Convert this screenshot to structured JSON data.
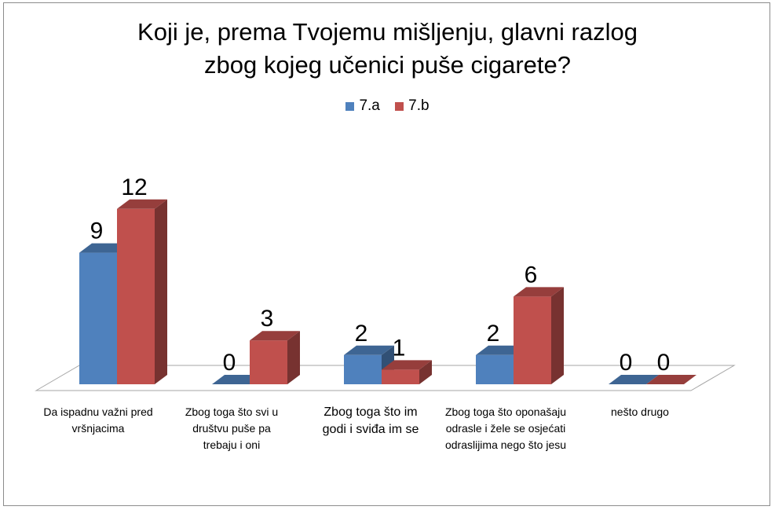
{
  "chart_data": {
    "type": "bar",
    "title_lines": [
      "Koji je, prema Tvojemu mišljenju, glavni razlog",
      "zbog kojeg učenici puše cigarete?"
    ],
    "categories": [
      "Da ispadnu važni pred vršnjacima",
      "Zbog toga što svi u društvu puše pa trebaju i oni",
      "Zbog toga što im godi i sviđa im se",
      "Zbog toga što oponašaju odrasle i žele se osjećati odraslijima nego što jesu",
      "nešto drugo"
    ],
    "series": [
      {
        "name": "7.a",
        "color": "#4f81bd",
        "values": [
          9,
          0,
          2,
          2,
          0
        ]
      },
      {
        "name": "7.b",
        "color": "#c0504d",
        "values": [
          12,
          3,
          1,
          6,
          0
        ]
      }
    ],
    "ylim": [
      0,
      12
    ],
    "grid": false,
    "legend_position": "top",
    "data_labels": true
  }
}
